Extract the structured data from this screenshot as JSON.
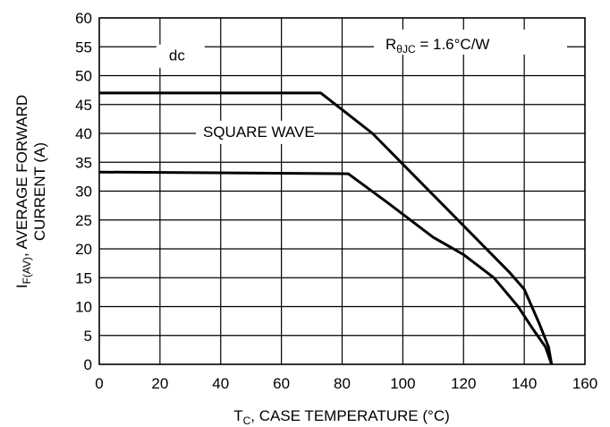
{
  "chart_data": {
    "type": "line",
    "xlabel_main": "T",
    "xlabel_sub": "C",
    "xlabel_rest": ", CASE TEMPERATURE (°C)",
    "ylabel_main": "I",
    "ylabel_sub": "F(AV)",
    "ylabel_rest": ", AVERAGE FORWARD",
    "ylabel_line2": "CURRENT (A)",
    "xlim": [
      0,
      160
    ],
    "ylim": [
      0,
      60
    ],
    "x_ticks": [
      0,
      20,
      40,
      60,
      80,
      100,
      120,
      140,
      160
    ],
    "y_ticks": [
      0,
      5,
      10,
      15,
      20,
      25,
      30,
      35,
      40,
      45,
      50,
      55,
      60
    ],
    "grid": true,
    "annotation": {
      "r": "R",
      "sub": "θJC",
      "rest": " = 1.6°C/W"
    },
    "series": [
      {
        "name": "dc",
        "points": [
          [
            0,
            47
          ],
          [
            73,
            47
          ],
          [
            90,
            40
          ],
          [
            105,
            32
          ],
          [
            120,
            24
          ],
          [
            135,
            16
          ],
          [
            140,
            13
          ],
          [
            145,
            7
          ],
          [
            148,
            3
          ],
          [
            149,
            0
          ]
        ]
      },
      {
        "name": "SQUARE WAVE",
        "points": [
          [
            0,
            33.3
          ],
          [
            82,
            33
          ],
          [
            95,
            28
          ],
          [
            110,
            22
          ],
          [
            120,
            19
          ],
          [
            130,
            15
          ],
          [
            138,
            10
          ],
          [
            143,
            6
          ],
          [
            147,
            3
          ],
          [
            149,
            0
          ]
        ]
      }
    ]
  }
}
